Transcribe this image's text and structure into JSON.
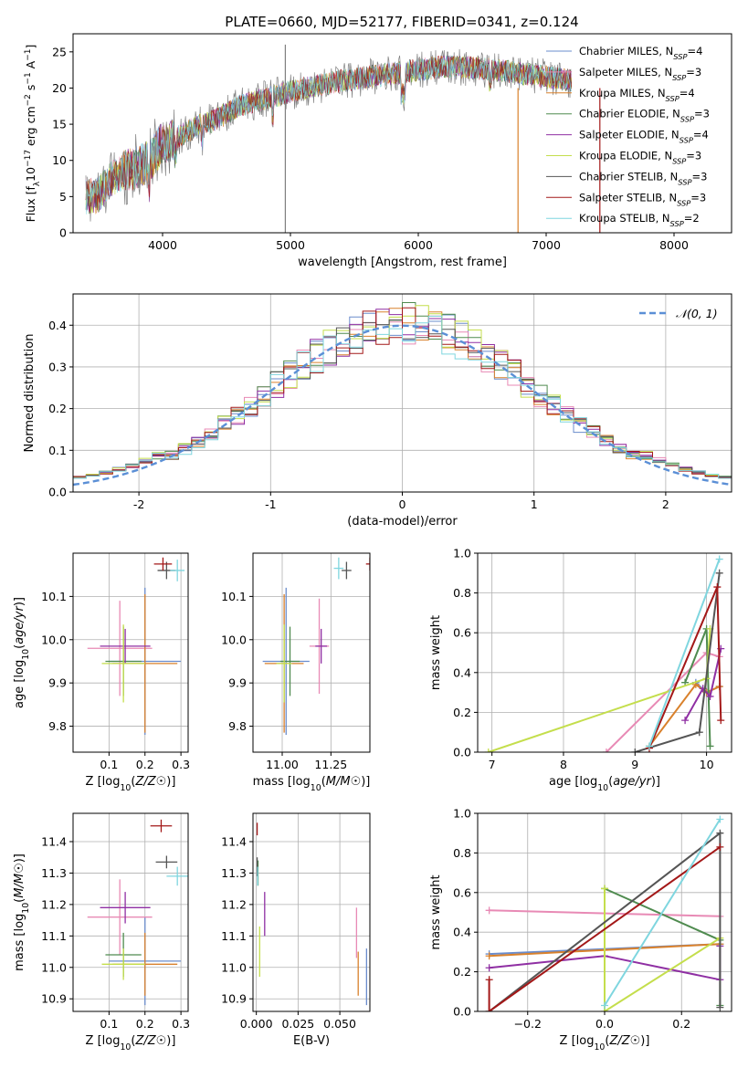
{
  "figure_title": "PLATE=0660, MJD=52177, FIBERID=0341, z=0.124",
  "colors": {
    "Chabrier MILES": "#6a8ccc",
    "Salpeter MILES": "#e88ab5",
    "Kroupa MILES": "#d9812c",
    "Chabrier ELODIE": "#4f8b4f",
    "Salpeter ELODIE": "#8f2fa3",
    "Kroupa ELODIE": "#c4de4c",
    "Chabrier STELIB": "#555555",
    "Salpeter STELIB": "#a31818",
    "Kroupa STELIB": "#7fd6df",
    "gaussian": "#5b8fd6",
    "spectrum_base": "#808080"
  },
  "chart_data": [
    {
      "id": "spectrum",
      "type": "line",
      "xlabel": "wavelength [Angstrom, rest frame]",
      "ylabel": "Flux [fλ10⁻¹⁷ erg cm⁻² s⁻¹ A⁻¹]",
      "xlim": [
        3300,
        8450
      ],
      "ylim": [
        0,
        27.5
      ],
      "xticks": [
        4000,
        5000,
        6000,
        7000,
        8000
      ],
      "yticks": [
        0,
        5,
        10,
        15,
        20,
        25
      ],
      "legend_position": "upper-right",
      "legend": [
        "Chabrier MILES, N_SSP=4",
        "Salpeter MILES, N_SSP=3",
        "Kroupa MILES, N_SSP=4",
        "Chabrier ELODIE, N_SSP=3",
        "Salpeter ELODIE, N_SSP=4",
        "Kroupa ELODIE, N_SSP=3",
        "Chabrier STELIB, N_SSP=3",
        "Salpeter STELIB, N_SSP=3",
        "Kroupa STELIB, N_SSP=2"
      ],
      "continuum": {
        "x": [
          3400,
          3500,
          3600,
          3700,
          3800,
          3900,
          4000,
          4100,
          4200,
          4300,
          4400,
          4500,
          4600,
          4800,
          5000,
          5200,
          5400,
          5600,
          5800,
          6000,
          6200,
          6400,
          6600,
          6800,
          7000,
          7200
        ],
        "y": [
          5.0,
          5.2,
          7.5,
          8.5,
          9.0,
          10.0,
          12.5,
          13.0,
          14.0,
          15.0,
          15.5,
          16.5,
          17.5,
          18.5,
          19.5,
          20.3,
          21.0,
          21.5,
          22.0,
          22.5,
          23.0,
          22.8,
          22.5,
          22.0,
          21.5,
          21.0
        ]
      },
      "spikes": [
        {
          "x": 4960,
          "y": [
            0,
            26
          ]
        },
        {
          "x": 6780,
          "y": [
            0,
            20
          ]
        },
        {
          "x": 7420,
          "y": [
            0,
            20
          ]
        }
      ]
    },
    {
      "id": "residual-hist",
      "type": "line",
      "xlabel": "(data-model)/error",
      "ylabel": "Normed distribution",
      "xlim": [
        -2.5,
        2.5
      ],
      "ylim": [
        0,
        0.475
      ],
      "xticks": [
        -2,
        -1,
        0,
        1,
        2
      ],
      "yticks": [
        0.0,
        0.1,
        0.2,
        0.3,
        0.4
      ],
      "grid": true,
      "legend_position": "upper-right",
      "legend": [
        "𝒩(0, 1)"
      ],
      "bin_width": 0.1
    },
    {
      "id": "age-vs-Z",
      "type": "scatter",
      "xlabel": "Z [log10(Z/Z☉)]",
      "ylabel": "age  [log10(age/yr)]",
      "xlim": [
        0.0,
        0.32
      ],
      "ylim": [
        9.74,
        10.2
      ],
      "xticks": [
        0.1,
        0.2,
        0.3
      ],
      "yticks": [
        9.8,
        9.9,
        10.0,
        10.1
      ],
      "grid": true,
      "points": [
        {
          "model": "Chabrier MILES",
          "x": 0.2,
          "y": 9.95,
          "xerr": 0.1,
          "yerr": 0.17
        },
        {
          "model": "Salpeter MILES",
          "x": 0.13,
          "y": 9.98,
          "xerr": 0.09,
          "yerr": 0.11
        },
        {
          "model": "Kroupa MILES",
          "x": 0.2,
          "y": 9.945,
          "xerr": 0.09,
          "yerr": 0.16
        },
        {
          "model": "Chabrier ELODIE",
          "x": 0.14,
          "y": 9.95,
          "xerr": 0.05,
          "yerr": 0.08
        },
        {
          "model": "Salpeter ELODIE",
          "x": 0.145,
          "y": 9.985,
          "xerr": 0.07,
          "yerr": 0.04
        },
        {
          "model": "Kroupa ELODIE",
          "x": 0.14,
          "y": 9.945,
          "xerr": 0.06,
          "yerr": 0.09
        },
        {
          "model": "Chabrier STELIB",
          "x": 0.26,
          "y": 10.16,
          "xerr": 0.025,
          "yerr": 0.02
        },
        {
          "model": "Salpeter STELIB",
          "x": 0.25,
          "y": 10.175,
          "xerr": 0.025,
          "yerr": 0.015
        },
        {
          "model": "Kroupa STELIB",
          "x": 0.29,
          "y": 10.16,
          "xerr": 0.02,
          "yerr": 0.025
        }
      ]
    },
    {
      "id": "age-vs-mass",
      "type": "scatter",
      "xlabel": "mass [log10(M/M☉)]",
      "ylabel": "",
      "xlim": [
        10.85,
        11.45
      ],
      "ylim": [
        9.74,
        10.2
      ],
      "xticks": [
        11.0,
        11.25
      ],
      "yticks": [
        9.8,
        9.9,
        10.0,
        10.1
      ],
      "grid": true,
      "points": [
        {
          "model": "Chabrier MILES",
          "x": 11.02,
          "y": 9.95,
          "xerr": 0.12,
          "yerr": 0.17
        },
        {
          "model": "Salpeter MILES",
          "x": 11.19,
          "y": 9.985,
          "xerr": 0.05,
          "yerr": 0.11
        },
        {
          "model": "Kroupa MILES",
          "x": 11.01,
          "y": 9.945,
          "xerr": 0.1,
          "yerr": 0.16
        },
        {
          "model": "Chabrier ELODIE",
          "x": 11.04,
          "y": 9.95,
          "xerr": 0.05,
          "yerr": 0.08
        },
        {
          "model": "Salpeter ELODIE",
          "x": 11.2,
          "y": 9.985,
          "xerr": 0.03,
          "yerr": 0.04
        },
        {
          "model": "Kroupa ELODIE",
          "x": 11.01,
          "y": 9.945,
          "xerr": 0.04,
          "yerr": 0.09
        },
        {
          "model": "Chabrier STELIB",
          "x": 11.33,
          "y": 10.16,
          "xerr": 0.025,
          "yerr": 0.02
        },
        {
          "model": "Salpeter STELIB",
          "x": 11.45,
          "y": 10.175,
          "xerr": 0.02,
          "yerr": 0.015
        },
        {
          "model": "Kroupa STELIB",
          "x": 11.29,
          "y": 10.165,
          "xerr": 0.025,
          "yerr": 0.025
        }
      ]
    },
    {
      "id": "weight-vs-age",
      "type": "line",
      "xlabel": "age  [log10(age/yr)]",
      "ylabel": "mass weight",
      "xlim": [
        6.8,
        10.35
      ],
      "ylim": [
        0.0,
        1.0
      ],
      "xticks": [
        7,
        8,
        9,
        10
      ],
      "yticks": [
        0.0,
        0.2,
        0.4,
        0.6,
        0.8,
        1.0
      ],
      "grid": true,
      "series": [
        {
          "model": "Chabrier MILES",
          "x": [
            9.85,
            10.0,
            10.18
          ],
          "y": [
            0.35,
            0.3,
            0.33
          ]
        },
        {
          "model": "Salpeter MILES",
          "x": [
            8.6,
            10.0,
            10.18
          ],
          "y": [
            0.0,
            0.5,
            0.48
          ]
        },
        {
          "model": "Kroupa MILES",
          "x": [
            9.2,
            9.85,
            10.0,
            10.18
          ],
          "y": [
            0.03,
            0.34,
            0.3,
            0.33
          ]
        },
        {
          "model": "Chabrier ELODIE",
          "x": [
            9.7,
            10.0,
            10.05
          ],
          "y": [
            0.35,
            0.62,
            0.03
          ]
        },
        {
          "model": "Salpeter ELODIE",
          "x": [
            9.7,
            9.95,
            10.05,
            10.2
          ],
          "y": [
            0.16,
            0.32,
            0.28,
            0.52
          ]
        },
        {
          "model": "Kroupa ELODIE",
          "x": [
            6.95,
            10.0,
            10.05
          ],
          "y": [
            0.0,
            0.37,
            0.62
          ]
        },
        {
          "model": "Chabrier STELIB",
          "x": [
            9.0,
            9.9,
            10.18
          ],
          "y": [
            0.0,
            0.1,
            0.9
          ]
        },
        {
          "model": "Salpeter STELIB",
          "x": [
            9.2,
            10.15,
            10.2
          ],
          "y": [
            0.02,
            0.83,
            0.16
          ]
        },
        {
          "model": "Kroupa STELIB",
          "x": [
            9.2,
            10.18
          ],
          "y": [
            0.03,
            0.97
          ]
        }
      ]
    },
    {
      "id": "mass-vs-Z",
      "type": "scatter",
      "xlabel": "Z [log10(Z/Z☉)]",
      "ylabel": "mass [log10(M/M☉)]",
      "xlim": [
        0.0,
        0.32
      ],
      "ylim": [
        10.86,
        11.49
      ],
      "xticks": [
        0.1,
        0.2,
        0.3
      ],
      "yticks": [
        10.9,
        11.0,
        11.1,
        11.2,
        11.3,
        11.4
      ],
      "grid": true,
      "points": [
        {
          "model": "Chabrier MILES",
          "x": 0.2,
          "y": 11.02,
          "xerr": 0.1,
          "yerr": 0.14
        },
        {
          "model": "Salpeter MILES",
          "x": 0.13,
          "y": 11.16,
          "xerr": 0.09,
          "yerr": 0.12
        },
        {
          "model": "Kroupa MILES",
          "x": 0.2,
          "y": 11.01,
          "xerr": 0.09,
          "yerr": 0.1
        },
        {
          "model": "Chabrier ELODIE",
          "x": 0.14,
          "y": 11.04,
          "xerr": 0.05,
          "yerr": 0.07
        },
        {
          "model": "Salpeter ELODIE",
          "x": 0.145,
          "y": 11.19,
          "xerr": 0.07,
          "yerr": 0.05
        },
        {
          "model": "Kroupa ELODIE",
          "x": 0.14,
          "y": 11.01,
          "xerr": 0.06,
          "yerr": 0.05
        },
        {
          "model": "Chabrier STELIB",
          "x": 0.26,
          "y": 11.335,
          "xerr": 0.03,
          "yerr": 0.02
        },
        {
          "model": "Salpeter STELIB",
          "x": 0.245,
          "y": 11.45,
          "xerr": 0.03,
          "yerr": 0.02
        },
        {
          "model": "Kroupa STELIB",
          "x": 0.29,
          "y": 11.29,
          "xerr": 0.03,
          "yerr": 0.03
        }
      ]
    },
    {
      "id": "mass-vs-ebv",
      "type": "scatter",
      "xlabel": "E(B-V)",
      "ylabel": "",
      "xlim": [
        -0.002,
        0.068
      ],
      "ylim": [
        10.86,
        11.49
      ],
      "xticks": [
        0.0,
        0.025,
        0.05
      ],
      "xtick_labels": [
        "0.000",
        "0.025",
        "0.050"
      ],
      "yticks": [
        10.9,
        11.0,
        11.1,
        11.2,
        11.3,
        11.4
      ],
      "grid": true,
      "points": [
        {
          "model": "Chabrier MILES",
          "x": 0.066,
          "y": 10.97,
          "yerr": 0.09
        },
        {
          "model": "Salpeter MILES",
          "x": 0.06,
          "y": 11.11,
          "yerr": 0.08
        },
        {
          "model": "Kroupa MILES",
          "x": 0.061,
          "y": 10.98,
          "yerr": 0.07
        },
        {
          "model": "Chabrier ELODIE",
          "x": 0.001,
          "y": 11.3,
          "yerr": 0.04
        },
        {
          "model": "Salpeter ELODIE",
          "x": 0.005,
          "y": 11.17,
          "yerr": 0.07
        },
        {
          "model": "Kroupa ELODIE",
          "x": 0.002,
          "y": 11.05,
          "yerr": 0.08
        },
        {
          "model": "Chabrier STELIB",
          "x": 0.0005,
          "y": 11.32,
          "yerr": 0.03
        },
        {
          "model": "Salpeter STELIB",
          "x": 0.0005,
          "y": 11.44,
          "yerr": 0.02
        },
        {
          "model": "Kroupa STELIB",
          "x": 0.0008,
          "y": 11.29,
          "yerr": 0.03
        }
      ]
    },
    {
      "id": "weight-vs-Z",
      "type": "line",
      "xlabel": "Z [log10(Z/Z☉)]",
      "ylabel": "mass weight",
      "xlim": [
        -0.33,
        0.33
      ],
      "ylim": [
        0.0,
        1.0
      ],
      "xticks": [
        -0.2,
        0.0,
        0.2
      ],
      "xtick_labels": [
        "−0.2",
        "0.0",
        "0.2"
      ],
      "yticks": [
        0.0,
        0.2,
        0.4,
        0.6,
        0.8,
        1.0
      ],
      "grid": true,
      "series": [
        {
          "model": "Chabrier MILES",
          "x": [
            -0.3,
            0.3
          ],
          "y": [
            0.29,
            0.34
          ]
        },
        {
          "model": "Salpeter MILES",
          "x": [
            -0.3,
            0.3
          ],
          "y": [
            0.51,
            0.48
          ]
        },
        {
          "model": "Kroupa MILES",
          "x": [
            -0.3,
            0.0,
            0.3
          ],
          "y": [
            0.28,
            0.31,
            0.34
          ]
        },
        {
          "model": "Chabrier ELODIE",
          "x": [
            0.0,
            0.3,
            0.3
          ],
          "y": [
            0.62,
            0.36,
            0.03
          ]
        },
        {
          "model": "Salpeter ELODIE",
          "x": [
            -0.3,
            0.0,
            0.3,
            0.3
          ],
          "y": [
            0.22,
            0.28,
            0.16,
            0.33
          ]
        },
        {
          "model": "Kroupa ELODIE",
          "x": [
            0.0,
            0.0,
            0.3
          ],
          "y": [
            0.62,
            0.0,
            0.37
          ]
        },
        {
          "model": "Chabrier STELIB",
          "x": [
            -0.3,
            0.3,
            0.3
          ],
          "y": [
            0.0,
            0.9,
            0.02
          ]
        },
        {
          "model": "Salpeter STELIB",
          "x": [
            -0.3,
            -0.3,
            0.3
          ],
          "y": [
            0.16,
            0.0,
            0.83
          ]
        },
        {
          "model": "Kroupa STELIB",
          "x": [
            0.0,
            0.3
          ],
          "y": [
            0.03,
            0.97
          ]
        }
      ]
    }
  ]
}
